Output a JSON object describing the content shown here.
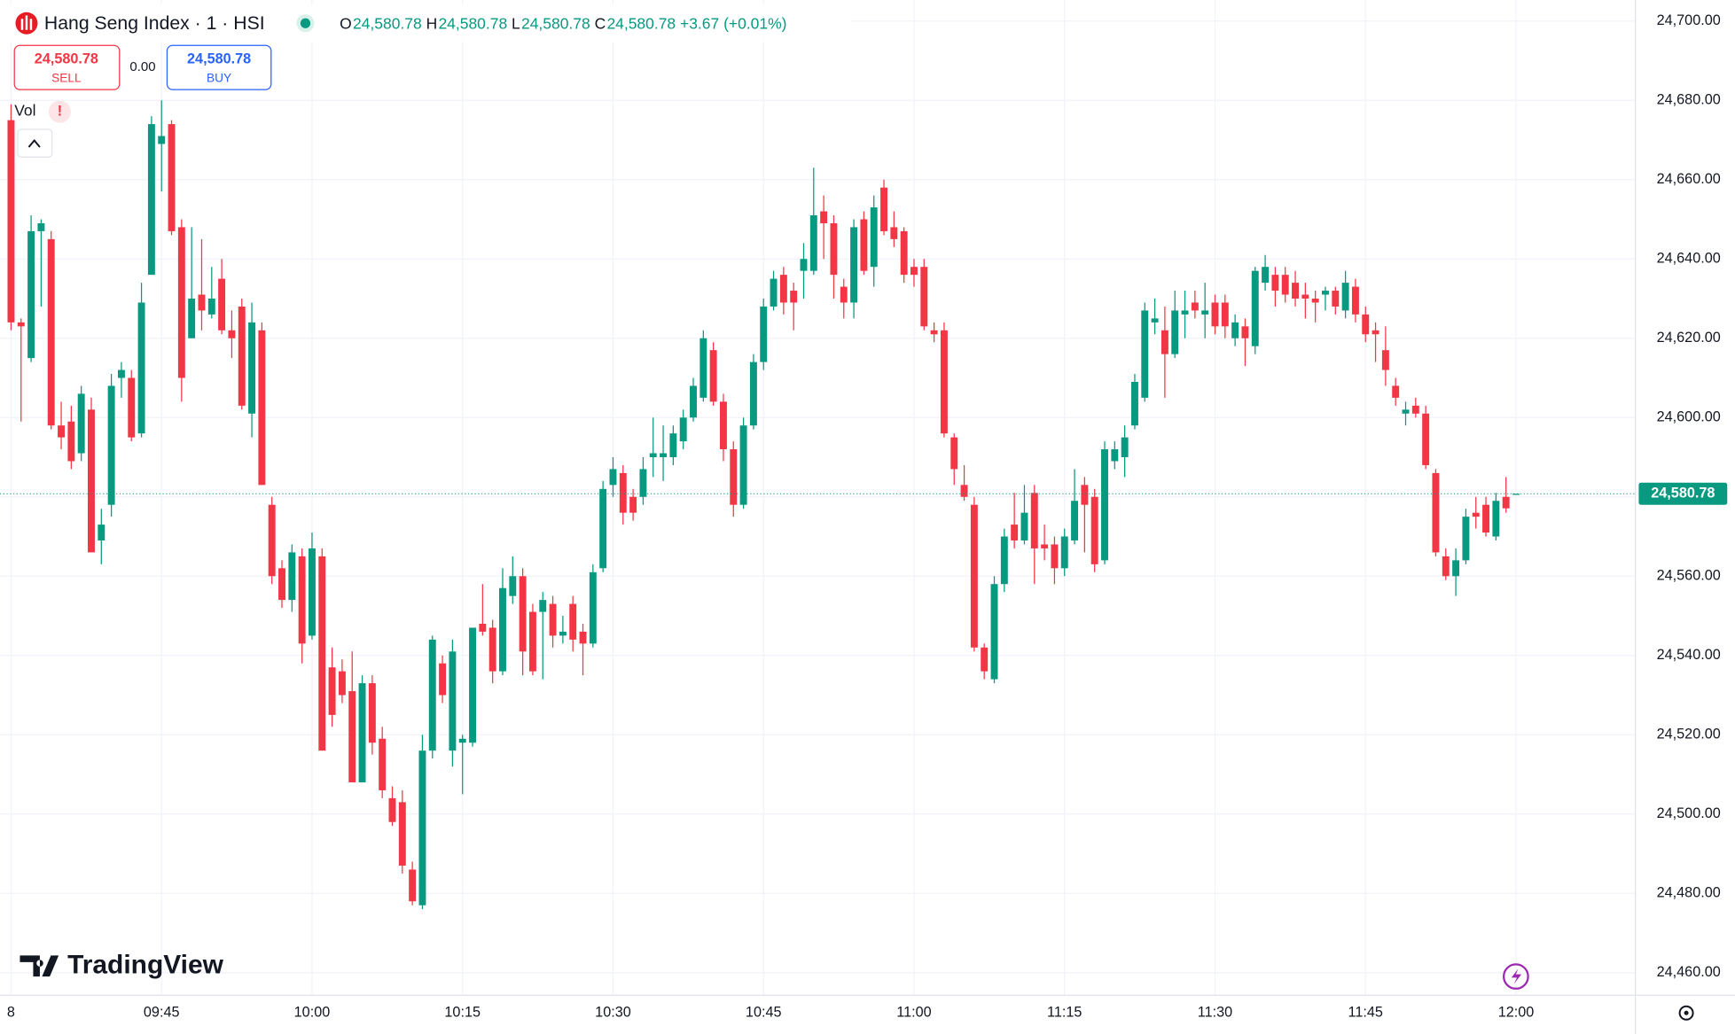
{
  "header": {
    "symbol": "Hang Seng Index · 1 · HSI",
    "ohlc": [
      {
        "label": "O",
        "value": "24,580.78"
      },
      {
        "label": "H",
        "value": "24,580.78"
      },
      {
        "label": "L",
        "value": "24,580.78"
      },
      {
        "label": "C",
        "value": "24,580.78"
      }
    ],
    "change": "+3.67 (+0.01%)"
  },
  "trade": {
    "sell_price": "24,580.78",
    "sell_label": "SELL",
    "spread": "0.00",
    "buy_price": "24,580.78",
    "buy_label": "BUY"
  },
  "indicator": {
    "name": "Vol",
    "alert": "!"
  },
  "brand": "TradingView",
  "chart_data": {
    "type": "candlestick",
    "up_color": "#089981",
    "down_color": "#f23645",
    "open": [
      24675,
      24624,
      24615,
      24647,
      24645,
      24598,
      24599,
      24591,
      24602,
      24569,
      24578,
      24610,
      24610,
      24596,
      24636,
      24669,
      24674,
      24648,
      24620,
      24631,
      24626,
      24635,
      24622,
      24628,
      24601,
      24622,
      24578,
      24562,
      24554,
      24565,
      24545,
      24565,
      24537,
      24536,
      24531,
      24508,
      24533,
      24519,
      24504,
      24503,
      24486,
      24477,
      24516,
      24538,
      24516,
      24518,
      24518,
      24548,
      24547,
      24536,
      24555,
      24560,
      24551,
      24551,
      24553,
      24545,
      24553,
      24546,
      24543,
      24562,
      24583,
      24586,
      24580,
      24580,
      24590,
      24590,
      24590,
      24594,
      24600,
      24605,
      24617,
      24604,
      24592,
      24578,
      24598,
      24614,
      24628,
      24636,
      24632,
      24637,
      24637,
      24652,
      24649,
      24633,
      24629,
      24650,
      24638,
      24658,
      24648,
      24647,
      24638,
      24638,
      24622,
      24622,
      24595,
      24583,
      24578,
      24542,
      24534,
      24558,
      24573,
      24569,
      24581,
      24568,
      24568,
      24562,
      24569,
      24583,
      24580,
      24564,
      24589,
      24590,
      24598,
      24605,
      24624,
      24622,
      24616,
      24626,
      24629,
      24626,
      24629,
      24629,
      24620,
      24623,
      24618,
      24634,
      24636,
      24636,
      24634,
      24631,
      24630,
      24631,
      24632,
      24627,
      24633,
      24626,
      24622,
      24617,
      24608,
      24601,
      24603,
      24601,
      24586,
      24565,
      24560,
      24564,
      24576,
      24578,
      24570,
      24580,
      24580.78
    ],
    "high": [
      24679,
      24625,
      24651,
      24650,
      24647,
      24604,
      24603,
      24608,
      24605,
      24577,
      24611,
      24614,
      24612,
      24634,
      24676,
      24680,
      24675,
      24650,
      24648,
      24645,
      24638,
      24640,
      24627,
      24630,
      24629,
      24624,
      24580,
      24564,
      24568,
      24567,
      24571,
      24567,
      24542,
      24539,
      24541,
      24535,
      24535,
      24522,
      24507,
      24506,
      24488,
      24520,
      24545,
      24540,
      24544,
      24520,
      24547,
      24558,
      24549,
      24562,
      24565,
      24562,
      24553,
      24556,
      24555,
      24550,
      24555,
      24548,
      24563,
      24584,
      24590,
      24588,
      24582,
      24590,
      24600,
      24598,
      24598,
      24602,
      24610,
      24622,
      24619,
      24606,
      24594,
      24600,
      24616,
      24630,
      24637,
      24638,
      24634,
      24644,
      24663,
      24656,
      24651,
      24635,
      24650,
      24652,
      24656,
      24660,
      24652,
      24648,
      24640,
      24640,
      24624,
      24624,
      24596,
      24588,
      24580,
      24543,
      24560,
      24572,
      24581,
      24583,
      24583,
      24573,
      24570,
      24572,
      24587,
      24585,
      24582,
      24594,
      24594,
      24598,
      24611,
      24629,
      24630,
      24628,
      24632,
      24632,
      24632,
      24634,
      24631,
      24631,
      24626,
      24625,
      24638,
      24641,
      24638,
      24638,
      24637,
      24634,
      24632,
      24633,
      24633,
      24637,
      24635,
      24628,
      24624,
      24623,
      24610,
      24604,
      24605,
      24603,
      24587,
      24567,
      24567,
      24577,
      24580,
      24580,
      24581,
      24585,
      24580.78
    ],
    "low": [
      24622,
      24599,
      24614,
      24628,
      24597,
      24592,
      24587,
      24589,
      24566,
      24563,
      24575,
      24605,
      24594,
      24595,
      24636,
      24657,
      24646,
      24604,
      24620,
      24622,
      24625,
      24621,
      24615,
      24602,
      24595,
      24583,
      24558,
      24552,
      24551,
      24538,
      24544,
      24516,
      24522,
      24528,
      24508,
      24508,
      24515,
      24504,
      24497,
      24485,
      24477,
      24476,
      24514,
      24528,
      24512,
      24505,
      24517,
      24545,
      24533,
      24535,
      24553,
      24535,
      24535,
      24534,
      24542,
      24543,
      24541,
      24535,
      24542,
      24561,
      24580,
      24573,
      24574,
      24578,
      24585,
      24584,
      24588,
      24592,
      24599,
      24604,
      24603,
      24589,
      24575,
      24577,
      24597,
      24612,
      24627,
      24626,
      24622,
      24630,
      24636,
      24640,
      24630,
      24625,
      24625,
      24636,
      24633,
      24646,
      24643,
      24634,
      24633,
      24622,
      24619,
      24595,
      24583,
      24579,
      24541,
      24534,
      24533,
      24556,
      24567,
      24568,
      24558,
      24564,
      24558,
      24560,
      24568,
      24566,
      24561,
      24563,
      24587,
      24585,
      24597,
      24604,
      24621,
      24605,
      24615,
      24620,
      24625,
      24620,
      24621,
      24620,
      24618,
      24613,
      24616,
      24632,
      24628,
      24629,
      24628,
      24625,
      24624,
      24627,
      24626,
      24625,
      24624,
      24619,
      24614,
      24608,
      24603,
      24598,
      24600,
      24587,
      24565,
      24559,
      24555,
      24563,
      24572,
      24570,
      24569,
      24576,
      24580.78
    ],
    "close": [
      24624,
      24623,
      24647,
      24649,
      24598,
      24595,
      24589,
      24606,
      24566,
      24573,
      24608,
      24612,
      24595,
      24629,
      24674,
      24671,
      24647,
      24610,
      24630,
      24627,
      24630,
      24622,
      24620,
      24603,
      24624,
      24583,
      24560,
      24554,
      24566,
      24543,
      24567,
      24516,
      24525,
      24530,
      24508,
      24533,
      24518,
      24506,
      24498,
      24487,
      24478,
      24516,
      24544,
      24530,
      24541,
      24519,
      24547,
      24546,
      24536,
      24557,
      24560,
      24541,
      24536,
      24554,
      24545,
      24546,
      24544,
      24543,
      24561,
      24582,
      24587,
      24576,
      24576,
      24587,
      24591,
      24591,
      24596,
      24600,
      24608,
      24620,
      24604,
      24592,
      24578,
      24598,
      24614,
      24628,
      24635,
      24629,
      24629,
      24640,
      24651,
      24649,
      24636,
      24629,
      24648,
      24637,
      24653,
      24647,
      24645,
      24636,
      24636,
      24623,
      24621,
      24596,
      24587,
      24580,
      24542,
      24536,
      24558,
      24570,
      24569,
      24576,
      24567,
      24567,
      24562,
      24570,
      24579,
      24578,
      24563,
      24592,
      24592,
      24595,
      24609,
      24627,
      24625,
      24616,
      24627,
      24627,
      24627,
      24627,
      24623,
      24623,
      24624,
      24620,
      24637,
      24638,
      24632,
      24631,
      24630,
      24630,
      24629,
      24632,
      24628,
      24634,
      24626,
      24621,
      24621,
      24612,
      24605,
      24602,
      24601,
      24588,
      24566,
      24560,
      24564,
      24575,
      24575,
      24571,
      24579,
      24577.11,
      24580.78
    ],
    "xlim": [
      -1.1,
      161.9
    ],
    "xticks": [
      {
        "value": 0,
        "label": "8"
      },
      {
        "value": 15,
        "label": "09:45"
      },
      {
        "value": 30,
        "label": "10:00"
      },
      {
        "value": 45,
        "label": "10:15"
      },
      {
        "value": 60,
        "label": "10:30"
      },
      {
        "value": 75,
        "label": "10:45"
      },
      {
        "value": 90,
        "label": "11:00"
      },
      {
        "value": 105,
        "label": "11:15"
      },
      {
        "value": 120,
        "label": "11:30"
      },
      {
        "value": 135,
        "label": "11:45"
      },
      {
        "value": 150,
        "label": "12:00"
      }
    ],
    "ylim": [
      24454.3,
      24705.3
    ],
    "yticks": [
      {
        "value": 24460,
        "label": "24,460.00"
      },
      {
        "value": 24480,
        "label": "24,480.00"
      },
      {
        "value": 24500,
        "label": "24,500.00"
      },
      {
        "value": 24520,
        "label": "24,520.00"
      },
      {
        "value": 24540,
        "label": "24,540.00"
      },
      {
        "value": 24560,
        "label": "24,560.00"
      },
      {
        "value": 24580,
        "label": "24,580.00"
      },
      {
        "value": 24600,
        "label": "24,600.00"
      },
      {
        "value": 24620,
        "label": "24,620.00"
      },
      {
        "value": 24640,
        "label": "24,640.00"
      },
      {
        "value": 24660,
        "label": "24,660.00"
      },
      {
        "value": 24680,
        "label": "24,680.00"
      },
      {
        "value": 24700,
        "label": "24,700.00"
      }
    ],
    "grid": true,
    "last_price": {
      "value": 24580.78,
      "label": "24,580.78"
    }
  }
}
